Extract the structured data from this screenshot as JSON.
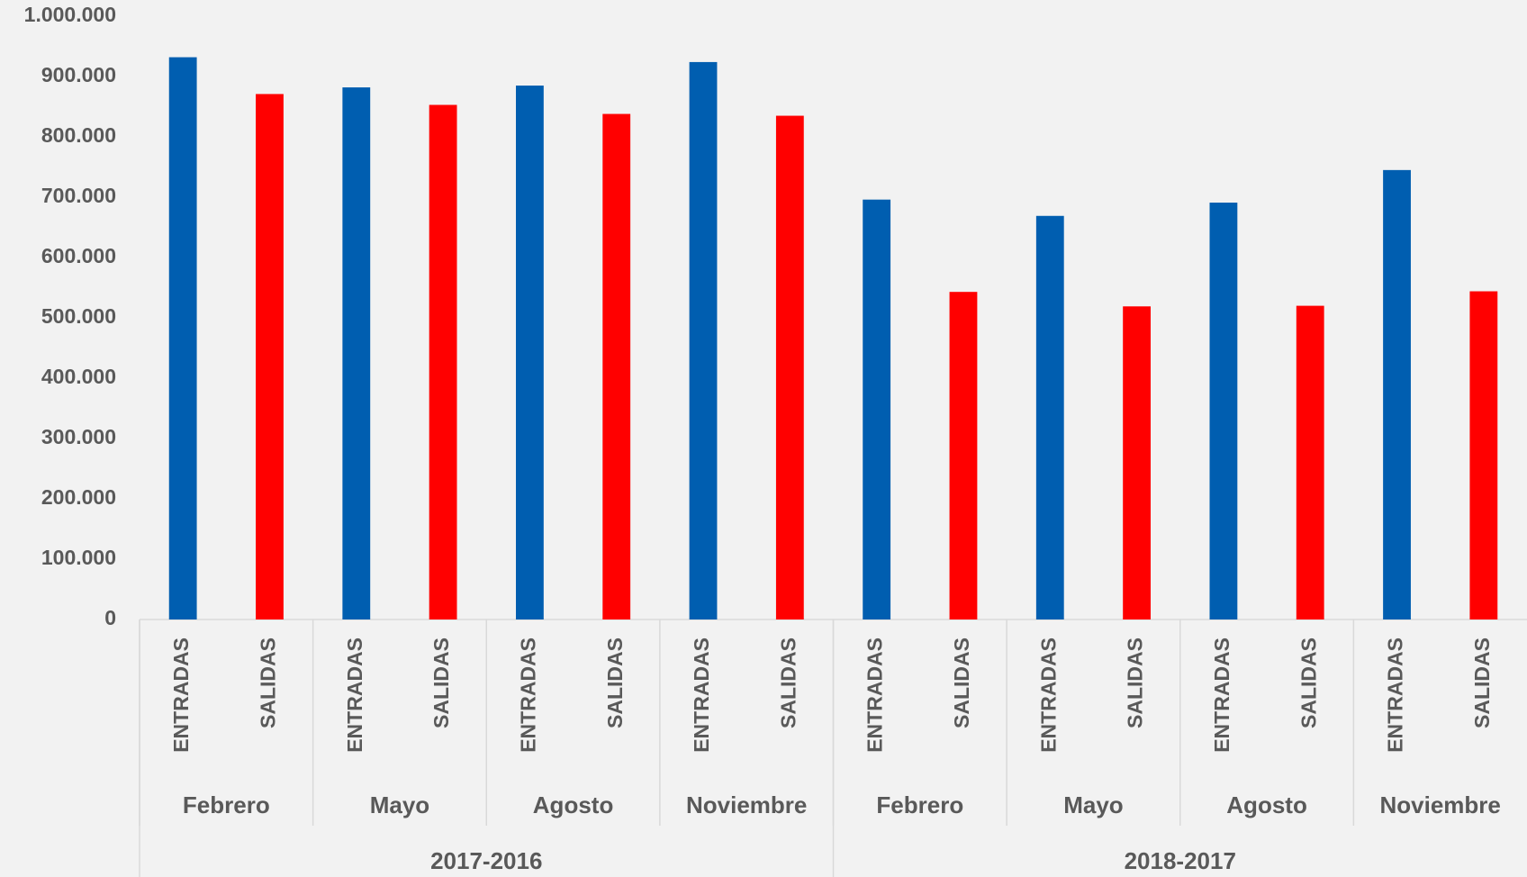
{
  "chart_data": {
    "type": "bar",
    "categories": [
      "ENTRADAS",
      "SALIDAS",
      "ENTRADAS",
      "SALIDAS",
      "ENTRADAS",
      "SALIDAS",
      "ENTRADAS",
      "SALIDAS",
      "ENTRADAS",
      "SALIDAS",
      "ENTRADAS",
      "SALIDAS",
      "ENTRADAS",
      "SALIDAS",
      "ENTRADAS",
      "SALIDAS"
    ],
    "months": [
      "Febrero",
      "Mayo",
      "Agosto",
      "Noviembre",
      "Febrero",
      "Mayo",
      "Agosto",
      "Noviembre"
    ],
    "years": [
      "2017-2016",
      "2018-2017"
    ],
    "values": [
      932000,
      871000,
      882000,
      853000,
      885000,
      838000,
      924000,
      835000,
      696000,
      543000,
      669000,
      519000,
      691000,
      520000,
      745000,
      544000
    ],
    "colors": [
      "#005eb0",
      "#ff0000",
      "#005eb0",
      "#ff0000",
      "#005eb0",
      "#ff0000",
      "#005eb0",
      "#ff0000",
      "#005eb0",
      "#ff0000",
      "#005eb0",
      "#ff0000",
      "#005eb0",
      "#ff0000",
      "#005eb0",
      "#ff0000"
    ],
    "ylim": [
      0,
      1000000
    ],
    "yticks": [
      0,
      {
        "value": 100000,
        "label": "100.000"
      },
      {
        "value": 200000,
        "label": "200.000"
      },
      {
        "value": 300000,
        "label": "300.000"
      },
      {
        "value": 400000,
        "label": "400.000"
      },
      {
        "value": 500000,
        "label": "500.000"
      },
      {
        "value": 600000,
        "label": "600.000"
      },
      {
        "value": 700000,
        "label": "700.000"
      },
      {
        "value": 800000,
        "label": "800.000"
      },
      {
        "value": 900000,
        "label": "900.000"
      },
      {
        "value": 1000000,
        "label": "1.000.000"
      }
    ],
    "grid": false
  }
}
